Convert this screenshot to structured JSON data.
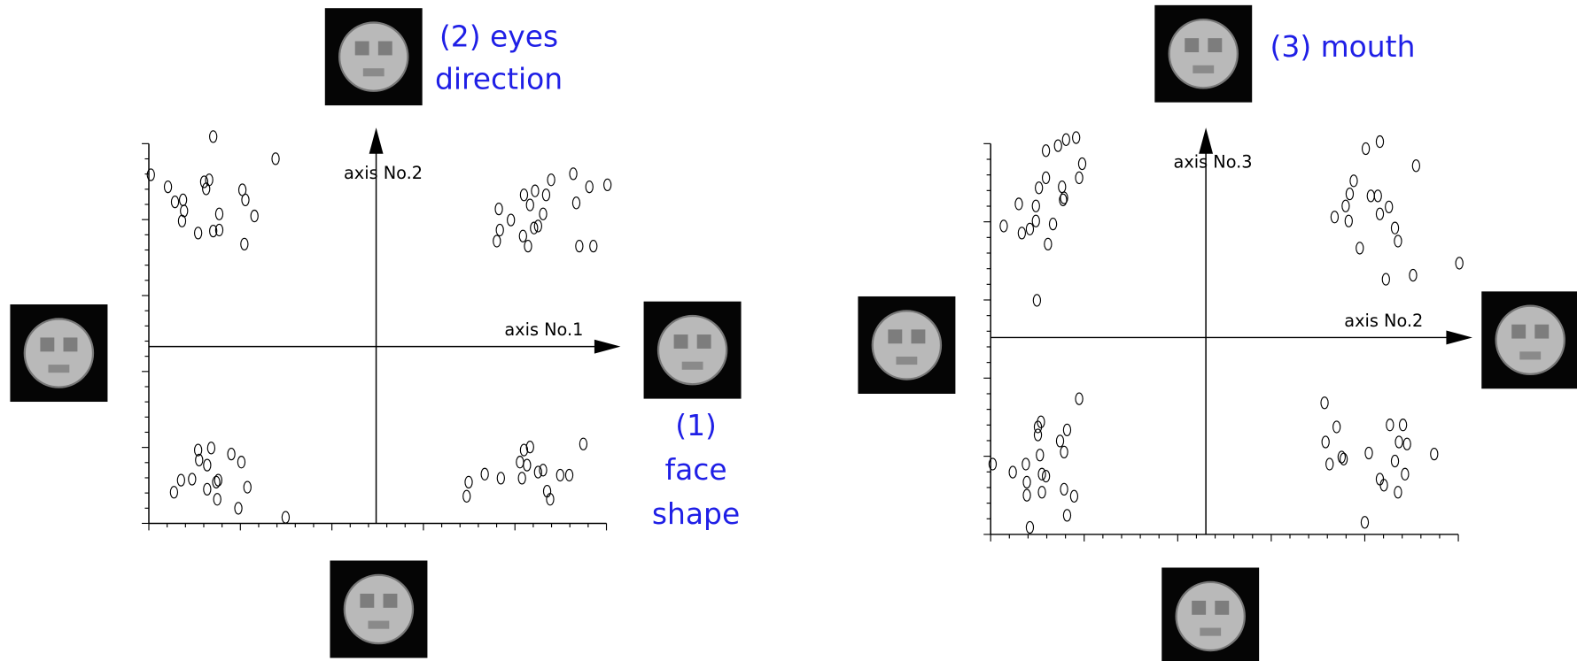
{
  "chart_data": [
    {
      "type": "scatter",
      "x_axis_label": "axis No.1",
      "y_axis_label": "axis No.2",
      "annotations": [
        {
          "lines": [
            "(2) eyes",
            "direction"
          ]
        },
        {
          "lines": [
            "(1)",
            "face",
            "shape"
          ]
        }
      ],
      "color": "#000000",
      "xlim": [
        -2.26,
        2.29
      ],
      "ylim": [
        -1.76,
        2.02
      ],
      "x": [
        -2.24,
        -2.07,
        -2.0,
        -1.92,
        -1.91,
        -1.93,
        -1.77,
        -1.71,
        -1.66,
        -1.69,
        -1.62,
        -1.56,
        -1.56,
        -1.33,
        -1.3,
        -1.21,
        -1.31,
        -1.62,
        -1.0,
        1.22,
        1.23,
        1.2,
        1.34,
        1.47,
        1.53,
        1.58,
        1.57,
        1.61,
        1.46,
        1.51,
        1.66,
        1.69,
        1.74,
        1.96,
        1.99,
        2.12,
        2.3,
        2.02,
        2.16,
        -2.01,
        -1.94,
        -1.83,
        -1.77,
        -1.76,
        -1.68,
        -1.64,
        -1.68,
        -1.59,
        -1.57,
        -1.44,
        -1.34,
        -1.28,
        -1.37,
        -0.9,
        -1.58,
        0.9,
        0.92,
        1.08,
        1.24,
        1.45,
        1.47,
        1.53,
        1.43,
        1.5,
        1.61,
        1.66,
        1.7,
        1.73,
        1.83,
        1.92,
        2.06
      ],
      "y": [
        1.71,
        1.59,
        1.44,
        1.46,
        1.35,
        1.25,
        1.13,
        1.64,
        1.66,
        1.57,
        1.15,
        1.16,
        1.32,
        1.56,
        1.46,
        1.3,
        1.02,
        2.09,
        1.87,
        1.37,
        1.16,
        1.05,
        1.26,
        1.51,
        1.41,
        1.55,
        1.18,
        1.2,
        1.1,
        1.0,
        1.32,
        1.51,
        1.66,
        1.72,
        1.43,
        1.59,
        1.61,
        1.0,
        1.0,
        -1.45,
        -1.33,
        -1.32,
        -1.03,
        -1.13,
        -1.18,
        -1.01,
        -1.42,
        -1.35,
        -1.33,
        -1.07,
        -1.15,
        -1.4,
        -1.61,
        -1.7,
        -1.52,
        -1.49,
        -1.35,
        -1.27,
        -1.31,
        -1.31,
        -1.03,
        -1.0,
        -1.15,
        -1.18,
        -1.25,
        -1.23,
        -1.44,
        -1.52,
        -1.28,
        -1.28,
        -0.97
      ]
    },
    {
      "type": "scatter",
      "x_axis_label": "axis No.2",
      "y_axis_label": "axis No.3",
      "annotations": [
        {
          "lines": [
            "(3) mouth"
          ]
        }
      ],
      "color": "#000000",
      "xlim": [
        -2.14,
        2.51
      ],
      "ylim": [
        -1.96,
        1.93
      ],
      "x": [
        -2.01,
        -1.83,
        -1.75,
        -1.69,
        -1.57,
        -1.68,
        -1.86,
        -1.66,
        -1.59,
        -1.69,
        -1.42,
        -1.43,
        -1.59,
        -1.47,
        -1.39,
        -1.29,
        -1.26,
        -1.23,
        -1.52,
        -1.41,
        1.59,
        1.73,
        2.09,
        1.47,
        1.43,
        1.39,
        1.28,
        1.42,
        1.53,
        1.64,
        1.71,
        1.73,
        1.82,
        1.88,
        1.91,
        1.79,
        2.06,
        2.52,
        -2.12,
        -1.92,
        -1.79,
        -1.78,
        -1.78,
        -1.75,
        -1.63,
        -1.59,
        -1.63,
        -1.67,
        -1.64,
        -1.65,
        -1.45,
        -1.38,
        -1.41,
        -1.41,
        -1.31,
        -1.38,
        -1.26,
        -1.67,
        1.18,
        1.3,
        1.19,
        1.23,
        1.35,
        1.37,
        1.58,
        1.62,
        1.83,
        1.96,
        1.92,
        2.0,
        1.88,
        1.73,
        1.77,
        1.91,
        1.98,
        2.27
      ],
      "y": [
        1.11,
        1.04,
        1.08,
        1.16,
        0.93,
        0.37,
        1.33,
        1.49,
        1.59,
        1.31,
        1.37,
        1.5,
        1.86,
        1.91,
        1.97,
        1.99,
        1.59,
        1.73,
        1.13,
        1.39,
        1.88,
        1.95,
        1.71,
        1.56,
        1.43,
        1.31,
        1.2,
        1.16,
        0.89,
        1.41,
        1.41,
        1.23,
        1.3,
        1.09,
        0.96,
        0.58,
        0.62,
        0.74,
        -1.26,
        -1.34,
        -1.26,
        -1.44,
        -1.57,
        -1.89,
        -1.36,
        -1.38,
        -1.54,
        -0.97,
        -0.84,
        -1.17,
        -1.03,
        -0.92,
        -1.14,
        -1.51,
        -1.58,
        -1.77,
        -0.61,
        -0.89,
        -0.65,
        -0.89,
        -1.04,
        -1.26,
        -1.19,
        -1.21,
        -1.84,
        -1.15,
        -0.87,
        -0.87,
        -1.04,
        -1.06,
        -1.23,
        -1.41,
        -1.47,
        -1.54,
        -1.36,
        -1.16
      ]
    }
  ]
}
